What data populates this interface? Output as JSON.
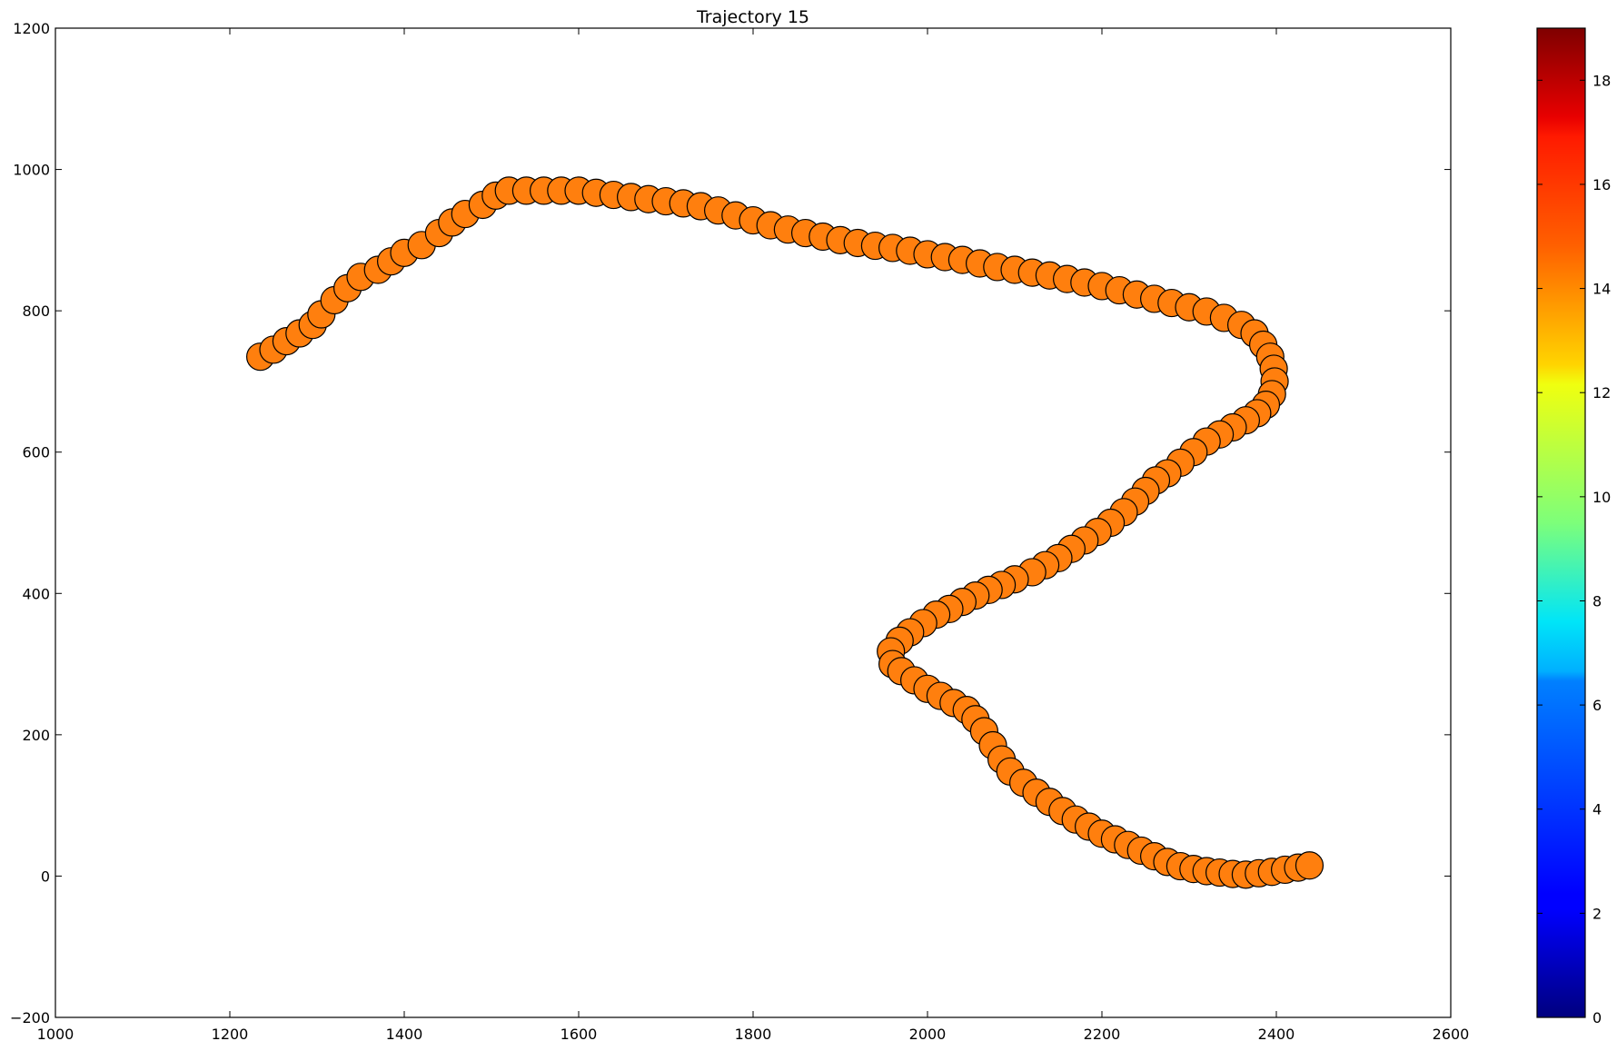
{
  "chart_data": {
    "type": "scatter",
    "title": "Trajectory 15",
    "xlabel": "",
    "ylabel": "",
    "xlim": [
      1000,
      2600
    ],
    "ylim": [
      -200,
      1200
    ],
    "xticks": [
      1000,
      1200,
      1400,
      1600,
      1800,
      2000,
      2200,
      2400,
      2600
    ],
    "yticks": [
      -200,
      0,
      200,
      400,
      600,
      800,
      1000,
      1200
    ],
    "grid": false,
    "marker_color": "#ff7f0e",
    "marker_edge_color": "#000000",
    "marker_value": 14.8,
    "colorbar": {
      "colormap": "jet",
      "range": [
        0,
        19
      ],
      "ticks": [
        0,
        2,
        4,
        6,
        8,
        10,
        12,
        14,
        16,
        18
      ]
    },
    "series": [
      {
        "x": [
          1235,
          1250,
          1265,
          1280,
          1295,
          1305,
          1320,
          1335,
          1350,
          1370,
          1385,
          1400,
          1420,
          1440,
          1455,
          1470,
          1490,
          1505,
          1520,
          1540,
          1560,
          1580,
          1600,
          1620,
          1640,
          1660,
          1680,
          1700,
          1720,
          1740,
          1760,
          1780,
          1800,
          1820,
          1840,
          1860,
          1880,
          1900,
          1920,
          1940,
          1960,
          1980,
          2000,
          2020,
          2040,
          2060,
          2080,
          2100,
          2120,
          2140,
          2160,
          2180,
          2200,
          2220,
          2240,
          2260,
          2280,
          2300,
          2320,
          2340,
          2360,
          2375,
          2385,
          2393,
          2397,
          2398,
          2395,
          2388,
          2378,
          2365,
          2350,
          2335,
          2320,
          2305,
          2290,
          2275,
          2262,
          2250,
          2238,
          2225,
          2210,
          2195,
          2180,
          2165,
          2150,
          2135,
          2120,
          2100,
          2085,
          2070,
          2055,
          2040,
          2025,
          2010,
          1995,
          1980,
          1968,
          1958,
          1960,
          1970,
          1985,
          2000,
          2015,
          2030,
          2045,
          2055,
          2065,
          2075,
          2085,
          2095,
          2110,
          2125,
          2140,
          2155,
          2170,
          2185,
          2200,
          2215,
          2230,
          2245,
          2260,
          2275,
          2290,
          2305,
          2320,
          2335,
          2350,
          2365,
          2380,
          2395,
          2410,
          2425,
          2438
        ],
        "y": [
          735,
          745,
          757,
          768,
          780,
          795,
          815,
          832,
          848,
          858,
          870,
          882,
          893,
          910,
          925,
          937,
          950,
          963,
          970,
          970,
          970,
          970,
          970,
          967,
          964,
          961,
          958,
          955,
          952,
          948,
          942,
          935,
          928,
          921,
          915,
          910,
          905,
          900,
          896,
          892,
          889,
          885,
          880,
          876,
          872,
          867,
          862,
          858,
          854,
          850,
          845,
          840,
          835,
          829,
          823,
          817,
          811,
          805,
          799,
          790,
          780,
          768,
          752,
          735,
          718,
          700,
          682,
          667,
          655,
          645,
          635,
          625,
          615,
          600,
          585,
          570,
          560,
          545,
          530,
          515,
          500,
          487,
          475,
          463,
          450,
          440,
          430,
          420,
          412,
          405,
          397,
          388,
          378,
          370,
          358,
          345,
          333,
          318,
          300,
          290,
          277,
          265,
          255,
          245,
          235,
          222,
          205,
          185,
          165,
          148,
          132,
          118,
          105,
          92,
          80,
          70,
          60,
          52,
          44,
          36,
          28,
          20,
          14,
          10,
          7,
          5,
          3,
          2,
          4,
          6,
          9,
          12,
          15
        ]
      }
    ]
  }
}
